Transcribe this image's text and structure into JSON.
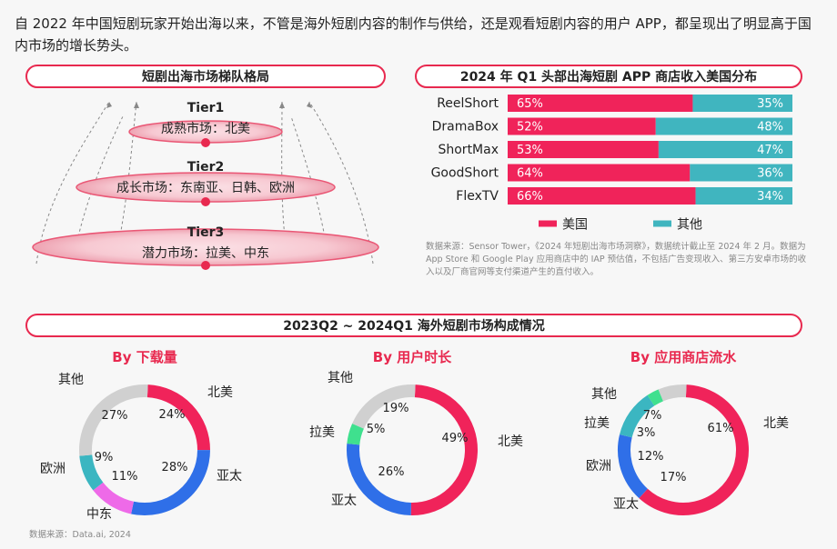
{
  "intro_text": "自 2022 年中国短剧玩家开始出海以来，不管是海外短剧内容的制作与供给，还是观看短剧内容的用户 APP，都呈现出了明显高于国内市场的增长势头。",
  "tiers": {
    "header": "短剧出海市场梯队格局",
    "items": [
      {
        "name": "Tier1",
        "desc": "成熟市场：北美"
      },
      {
        "name": "Tier2",
        "desc": "成长市场：东南亚、日韩、欧洲"
      },
      {
        "name": "Tier3",
        "desc": "潜力市场：拉美、中东"
      }
    ]
  },
  "revenue": {
    "header": "2024 年 Q1 头部出海短剧 APP 商店收入美国分布",
    "source": "数据来源：Sensor Tower，《2024 年短剧出海市场洞察》，数据统计截止至 2024 年 2 月。数据为 App Store 和 Google Play 应用商店中的 IAP 预估值，不包括广告变现收入、第三方安卓市场的收入以及厂商官网等支付渠道产生的直付收入。"
  },
  "market": {
    "header": "2023Q2 ~ 2024Q1 海外短剧市场构成情况",
    "source": "数据来源：Data.ai, 2024"
  },
  "colors": {
    "north_america": "#f0235a",
    "apac": "#2f6fe8",
    "middle_east": "#ee6ae8",
    "europe": "#3bb6c1",
    "latam": "#3fe08e",
    "other": "#d0d0d0",
    "us": "#f0235a",
    "others_bar": "#40b5bf",
    "accent": "#e8294f"
  },
  "chart_data": [
    {
      "type": "bar",
      "orientation": "horizontal",
      "stacked": true,
      "title": "2024 年 Q1 头部出海短剧 APP 商店收入美国分布",
      "categories": [
        "ReelShort",
        "DramaBox",
        "ShortMax",
        "GoodShort",
        "FlexTV"
      ],
      "series": [
        {
          "name": "美国",
          "values": [
            65,
            52,
            53,
            64,
            66
          ],
          "labels": [
            "65%",
            "52%",
            "53%",
            "64%",
            "66%"
          ]
        },
        {
          "name": "其他",
          "values": [
            35,
            48,
            47,
            36,
            34
          ],
          "labels": [
            "35%",
            "48%",
            "47%",
            "36%",
            "34%"
          ]
        }
      ],
      "xlim": [
        0,
        100
      ],
      "legend": "bottom"
    },
    {
      "type": "pie",
      "donut": true,
      "title": "By 下载量",
      "slices": [
        {
          "label": "北美",
          "value": 24,
          "text": "24%",
          "color": "#f0235a"
        },
        {
          "label": "亚太",
          "value": 28,
          "text": "28%",
          "color": "#2f6fe8"
        },
        {
          "label": "中东",
          "value": 11,
          "text": "11%",
          "color": "#ee6ae8"
        },
        {
          "label": "欧洲",
          "value": 9,
          "text": "9%",
          "color": "#3bb6c1"
        },
        {
          "label": "其他",
          "value": 27,
          "text": "27%",
          "color": "#d0d0d0"
        }
      ]
    },
    {
      "type": "pie",
      "donut": true,
      "title": "By 用户时长",
      "slices": [
        {
          "label": "北美",
          "value": 49,
          "text": "49%",
          "color": "#f0235a"
        },
        {
          "label": "亚太",
          "value": 26,
          "text": "26%",
          "color": "#2f6fe8"
        },
        {
          "label": "拉美",
          "value": 5,
          "text": "5%",
          "color": "#3fe08e"
        },
        {
          "label": "其他",
          "value": 19,
          "text": "19%",
          "color": "#d0d0d0"
        }
      ]
    },
    {
      "type": "pie",
      "donut": true,
      "title": "By 应用商店流水",
      "slices": [
        {
          "label": "北美",
          "value": 61,
          "text": "61%",
          "color": "#f0235a"
        },
        {
          "label": "亚太",
          "value": 17,
          "text": "17%",
          "color": "#2f6fe8"
        },
        {
          "label": "欧洲",
          "value": 12,
          "text": "12%",
          "color": "#3bb6c1"
        },
        {
          "label": "拉美",
          "value": 3,
          "text": "3%",
          "color": "#3fe08e"
        },
        {
          "label": "其他",
          "value": 7,
          "text": "7%",
          "color": "#d0d0d0"
        }
      ]
    }
  ]
}
